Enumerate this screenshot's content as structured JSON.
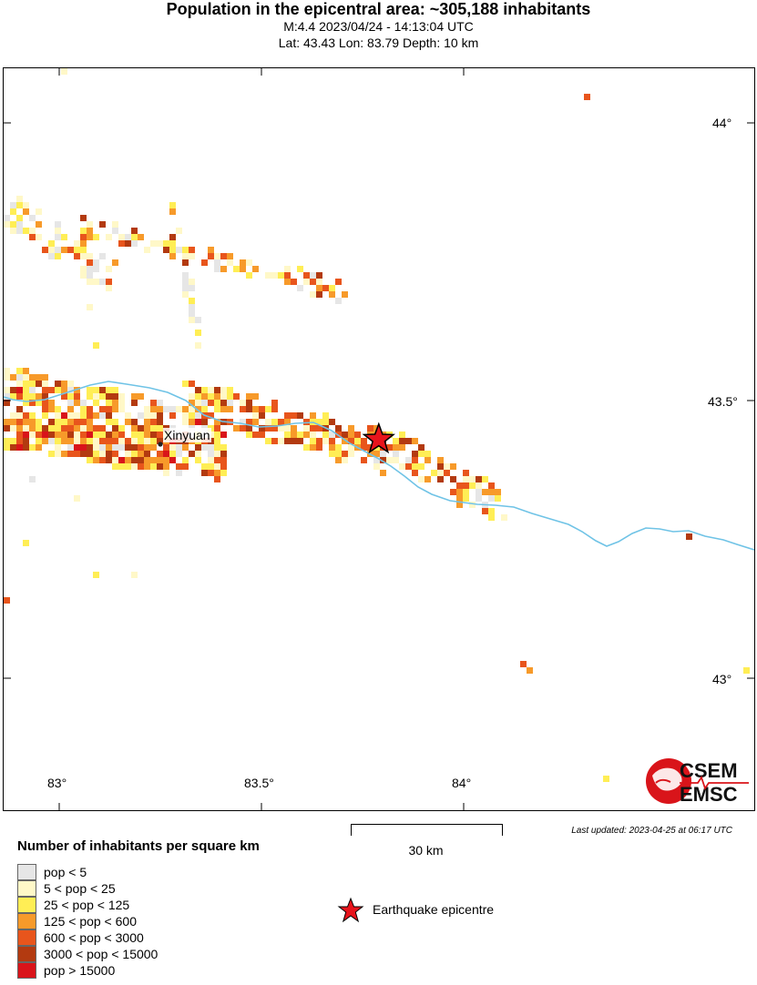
{
  "header": {
    "title": "Population in the epicentral area: ~305,188 inhabitants",
    "subtitle_event": "M:4.4 2023/04/24 - 14:13:04 UTC",
    "subtitle_location": "Lat: 43.43 Lon: 83.79 Depth: 10 km"
  },
  "map": {
    "lat_labels": [
      "44°",
      "43.5°",
      "43°"
    ],
    "lon_labels": [
      "83°",
      "83.5°",
      "84°"
    ],
    "city": "Xinyuan",
    "epicenter": {
      "lat": 43.43,
      "lon": 83.79
    },
    "river_color": "#6fc3e6"
  },
  "scale_bar": {
    "label": "30 km"
  },
  "last_updated": "Last updated: 2023-04-25 at 06:17 UTC",
  "logo": {
    "line1": "CSEM",
    "line2": "EMSC"
  },
  "legend": {
    "title": "Number of inhabitants per square km",
    "items": [
      {
        "label": "pop < 5",
        "color": "#e6e6e6"
      },
      {
        "label": "5 < pop < 25",
        "color": "#fff8c8"
      },
      {
        "label": "25 < pop < 125",
        "color": "#ffee55"
      },
      {
        "label": "125 < pop < 600",
        "color": "#f79a2a"
      },
      {
        "label": "600 < pop < 3000",
        "color": "#e8551c"
      },
      {
        "label": "3000 < pop < 15000",
        "color": "#b33a10"
      },
      {
        "label": "pop > 15000",
        "color": "#d9141a"
      }
    ],
    "epicentre_label": "Earthquake epicentre",
    "epicentre_color": "#e8141c"
  }
}
